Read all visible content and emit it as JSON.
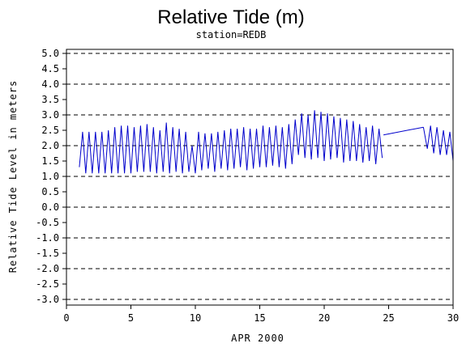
{
  "chart_data": {
    "type": "line",
    "title": "Relative Tide (m)",
    "subtitle": "station=REDB",
    "xlabel": "APR 2000",
    "ylabel": "Relative Tide Level in meters",
    "xlim": [
      0,
      30
    ],
    "ylim": [
      -3.0,
      5.0
    ],
    "x_ticks": [
      0,
      5,
      10,
      15,
      20,
      25,
      30
    ],
    "y_ticks": [
      -3.0,
      -2.5,
      -2.0,
      -1.5,
      -1.0,
      -0.5,
      0.0,
      0.5,
      1.0,
      1.5,
      2.0,
      2.5,
      3.0,
      3.5,
      4.0,
      4.5,
      5.0
    ],
    "y_tick_labels": [
      "-3.0",
      "-2.5",
      "-2.0",
      "-1.5",
      "-1.0",
      "-0.5",
      "0.0",
      "0.5",
      "1.0",
      "1.5",
      "2.0",
      "2.5",
      "3.0",
      "3.5",
      "4.0",
      "4.5",
      "5.0"
    ],
    "gridlines_y": [
      -3.0,
      -2.0,
      -1.0,
      0.0,
      1.0,
      2.0,
      3.0,
      4.0,
      5.0
    ],
    "grid_style": "dashed",
    "line_color": "#0000cc",
    "series": [
      {
        "data_gap": [
          24.6,
          27.7
        ],
        "segments": [
          {
            "x": [
              1.0,
              1.25,
              1.5,
              1.75,
              2.0,
              2.25,
              2.5,
              2.75,
              3.0,
              3.25,
              3.5,
              3.75,
              4.0,
              4.25,
              4.5,
              4.75,
              5.0,
              5.25,
              5.5,
              5.75,
              6.0,
              6.25,
              6.5,
              6.75,
              7.0,
              7.25,
              7.5,
              7.75,
              8.0,
              8.25,
              8.5,
              8.75,
              9.0,
              9.25,
              9.5,
              9.75,
              10.0,
              10.25,
              10.5,
              10.75,
              11.0,
              11.25,
              11.5,
              11.75,
              12.0,
              12.25,
              12.5,
              12.75,
              13.0,
              13.25,
              13.5,
              13.75,
              14.0,
              14.25,
              14.5,
              14.75,
              15.0,
              15.25,
              15.5,
              15.75,
              16.0,
              16.25,
              16.5,
              16.75,
              17.0,
              17.25,
              17.5,
              17.75,
              18.0,
              18.25,
              18.5,
              18.75,
              19.0,
              19.25,
              19.5,
              19.75,
              20.0,
              20.25,
              20.5,
              20.75,
              21.0,
              21.25,
              21.5,
              21.75,
              22.0,
              22.25,
              22.5,
              22.75,
              23.0,
              23.25,
              23.5,
              23.75,
              24.0,
              24.25,
              24.5
            ],
            "y": [
              1.3,
              2.45,
              1.1,
              2.45,
              1.1,
              2.45,
              1.1,
              2.45,
              1.1,
              2.5,
              1.1,
              2.6,
              1.1,
              2.65,
              1.1,
              2.65,
              1.1,
              2.6,
              1.15,
              2.65,
              1.15,
              2.7,
              1.15,
              2.6,
              1.1,
              2.5,
              1.15,
              2.75,
              1.1,
              2.6,
              1.15,
              2.55,
              1.1,
              2.45,
              1.15,
              2.0,
              1.1,
              2.45,
              1.2,
              2.4,
              1.25,
              2.4,
              1.15,
              2.45,
              1.25,
              2.5,
              1.2,
              2.55,
              1.25,
              2.55,
              1.3,
              2.6,
              1.2,
              2.55,
              1.25,
              2.55,
              1.3,
              2.65,
              1.3,
              2.6,
              1.35,
              2.65,
              1.3,
              2.6,
              1.25,
              2.7,
              1.4,
              2.85,
              1.7,
              3.05,
              1.6,
              3.0,
              1.55,
              3.15,
              1.6,
              3.1,
              1.5,
              3.05,
              1.55,
              2.95,
              1.6,
              2.9,
              1.45,
              2.85,
              1.5,
              2.8,
              1.5,
              2.7,
              1.45,
              2.6,
              1.5,
              2.65,
              1.4,
              2.55,
              1.6
            ]
          },
          {
            "x": [
              24.6,
              27.7
            ],
            "y": [
              2.35,
              2.6
            ]
          },
          {
            "x": [
              27.7,
              28.0,
              28.25,
              28.5,
              28.75,
              29.0,
              29.25,
              29.5,
              29.75,
              30.0
            ],
            "y": [
              2.6,
              1.9,
              2.65,
              1.75,
              2.6,
              1.7,
              2.5,
              1.7,
              2.45,
              1.5
            ]
          }
        ]
      }
    ]
  }
}
